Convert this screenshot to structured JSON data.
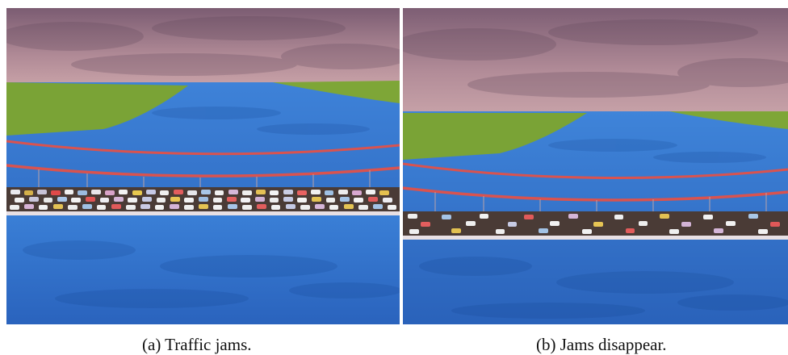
{
  "captions": {
    "a": "(a) Traffic jams.",
    "b": "(b) Jams disappear."
  },
  "scene": {
    "colors": {
      "sky_top": "#8a6a7e",
      "sky_bottom": "#c9a2a5",
      "grass": "#7aa336",
      "water": "#2f6fc9",
      "water_dark": "#1f54a6",
      "cable": "#d9534f",
      "road": "#4a3b36",
      "road_edge": "#e8e0e4"
    },
    "panels": [
      {
        "id": "a",
        "state": "traffic jam",
        "density": 0.9
      },
      {
        "id": "b",
        "state": "jams disappear",
        "density": 0.35
      }
    ]
  }
}
